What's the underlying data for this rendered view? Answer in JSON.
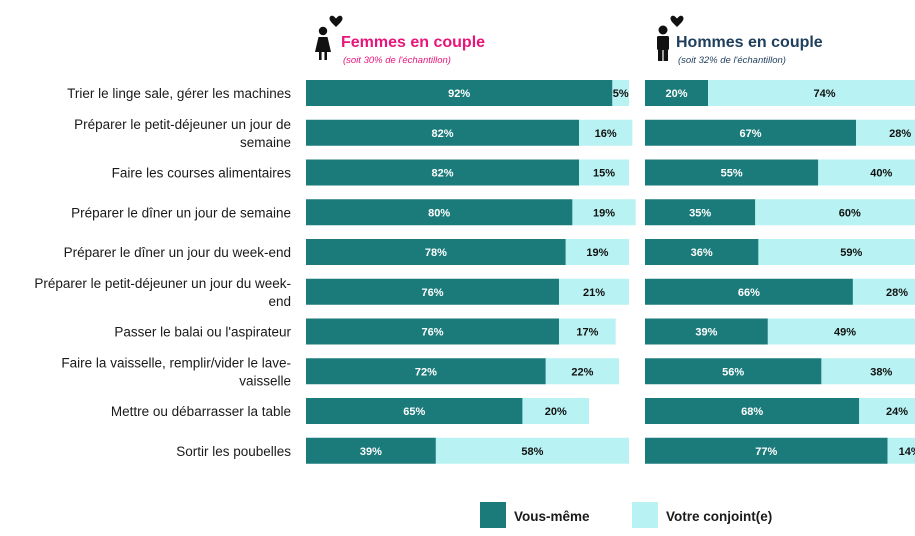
{
  "colors": {
    "self": "#1b7a7a",
    "partner": "#b8f2f2",
    "women_title": "#e8157a",
    "men_title": "#1f3e5c",
    "icon": "#111111",
    "heart": "#111111"
  },
  "legend": {
    "self": "Vous-même",
    "partner": "Votre conjoint(e)"
  },
  "chart_data": [
    {
      "type": "bar",
      "orientation": "horizontal",
      "stacked": true,
      "title": "Femmes en couple",
      "subtitle": "(soit 30% de l'échantillon)",
      "categories": [
        [
          "Trier le linge sale, gérer les machines"
        ],
        [
          "Préparer le petit-déjeuner un jour de",
          "semaine"
        ],
        [
          "Faire les courses alimentaires"
        ],
        [
          "Préparer le dîner un jour de semaine"
        ],
        [
          "Préparer le dîner un jour du week-end"
        ],
        [
          "Préparer le petit-déjeuner un jour du week-",
          "end"
        ],
        [
          "Passer le balai ou l'aspirateur"
        ],
        [
          "Faire la vaisselle, remplir/vider le lave-",
          "vaisselle"
        ],
        [
          "Mettre ou débarrasser la table"
        ],
        [
          "Sortir les poubelles"
        ]
      ],
      "series": [
        {
          "name": "Vous-même",
          "values": [
            92,
            82,
            82,
            80,
            78,
            76,
            76,
            72,
            65,
            39
          ],
          "labels": [
            "92%",
            "82%",
            "82%",
            "80%",
            "78%",
            "76%",
            "76%",
            "72%",
            "65%",
            "39%"
          ]
        },
        {
          "name": "Votre conjoint(e)",
          "values": [
            5,
            16,
            15,
            19,
            19,
            21,
            17,
            22,
            20,
            58
          ],
          "labels": [
            "5%",
            "16%",
            "15%",
            "19%",
            "19%",
            "21%",
            "17%",
            "22%",
            "20%",
            "58%"
          ]
        }
      ],
      "xlim": [
        0,
        100
      ],
      "legend": "bottom"
    },
    {
      "type": "bar",
      "orientation": "horizontal",
      "stacked": true,
      "title": "Hommes en couple",
      "subtitle": "(soit 32% de l'échantillon)",
      "series": [
        {
          "name": "Vous-même",
          "values": [
            20,
            67,
            55,
            35,
            36,
            66,
            39,
            56,
            68,
            77
          ],
          "labels": [
            "20%",
            "67%",
            "55%",
            "35%",
            "36%",
            "66%",
            "39%",
            "56%",
            "68%",
            "77%"
          ]
        },
        {
          "name": "Votre conjoint(e)",
          "values": [
            74,
            28,
            40,
            60,
            59,
            28,
            49,
            38,
            24,
            14
          ],
          "labels": [
            "74%",
            "28%",
            "40%",
            "60%",
            "59%",
            "28%",
            "49%",
            "38%",
            "24%",
            "14%"
          ]
        }
      ],
      "xlim": [
        0,
        100
      ],
      "legend": "bottom"
    }
  ]
}
